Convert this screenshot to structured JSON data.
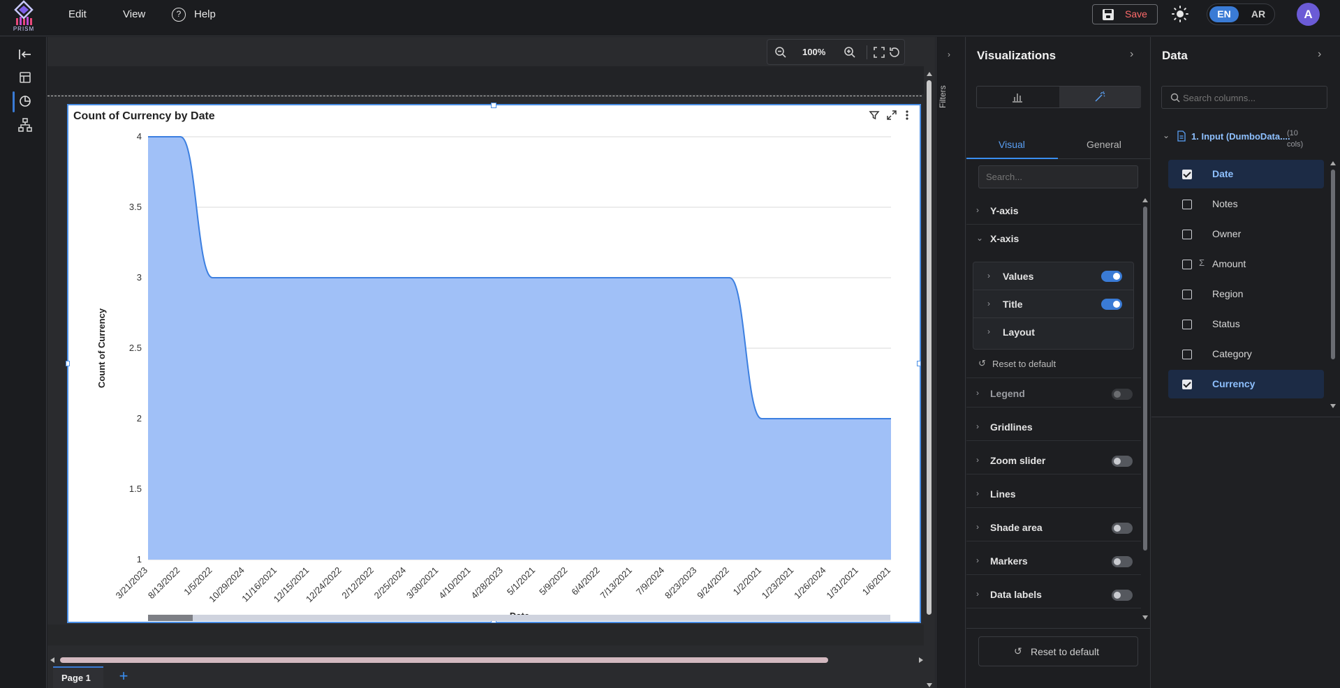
{
  "app": {
    "logo_text": "PRISM"
  },
  "menu": {
    "edit": "Edit",
    "view": "View",
    "help": "Help"
  },
  "toolbar": {
    "save_label": "Save",
    "lang_en": "EN",
    "lang_ar": "AR",
    "avatar_initial": "A"
  },
  "zoom": {
    "level": "100%"
  },
  "colors": {
    "accent": "#3a7bd5",
    "area_fill": "#a0c0f7",
    "area_line": "#3c7fe0",
    "save_text": "#ff6b6b"
  },
  "chart_data": {
    "type": "area",
    "title": "Count of Currency by Date",
    "xlabel": "Date",
    "ylabel": "Count of Currency",
    "ylim": [
      1,
      4
    ],
    "yticks": [
      "4",
      "3.5",
      "3",
      "2.5",
      "2",
      "1.5",
      "1"
    ],
    "categories": [
      "3/21/2023",
      "8/13/2022",
      "1/5/2022",
      "10/29/2024",
      "11/16/2021",
      "12/15/2021",
      "12/24/2022",
      "2/12/2022",
      "2/25/2024",
      "3/30/2021",
      "4/10/2021",
      "4/28/2023",
      "5/1/2021",
      "5/9/2022",
      "6/4/2022",
      "7/13/2021",
      "7/9/2024",
      "8/23/2023",
      "9/24/2022",
      "1/2/2021",
      "1/23/2021",
      "1/26/2024",
      "1/31/2021",
      "1/6/2021"
    ],
    "values": [
      4,
      4,
      3,
      3,
      3,
      3,
      3,
      3,
      3,
      3,
      3,
      3,
      3,
      3,
      3,
      3,
      3,
      3,
      3,
      2,
      2,
      2,
      2,
      2
    ],
    "grid": true,
    "legend": "none"
  },
  "page_tabs": {
    "page1": "Page 1",
    "add": "+"
  },
  "filters": {
    "label": "Filters"
  },
  "viz_panel": {
    "title": "Visualizations",
    "tabs": {
      "visual": "Visual",
      "general": "General"
    },
    "search_placeholder": "Search...",
    "sections": {
      "y_axis": "Y-axis",
      "x_axis": "X-axis",
      "values": "Values",
      "title": "Title",
      "layout": "Layout",
      "reset_inner": "Reset to default",
      "legend": "Legend",
      "gridlines": "Gridlines",
      "zoom_slider": "Zoom slider",
      "lines": "Lines",
      "shade_area": "Shade area",
      "markers": "Markers",
      "data_labels": "Data labels"
    },
    "reset_button": "Reset to default"
  },
  "data_panel": {
    "title": "Data",
    "search_placeholder": "Search columns...",
    "source_name": "1. Input (DumboData....",
    "source_cols": "(10 cols)",
    "fields": [
      {
        "label": "Date",
        "checked": true
      },
      {
        "label": "Notes",
        "checked": false
      },
      {
        "label": "Owner",
        "checked": false
      },
      {
        "label": "Amount",
        "checked": false
      },
      {
        "label": "Region",
        "checked": false
      },
      {
        "label": "Status",
        "checked": false
      },
      {
        "label": "Category",
        "checked": false
      },
      {
        "label": "Currency",
        "checked": true
      }
    ]
  }
}
